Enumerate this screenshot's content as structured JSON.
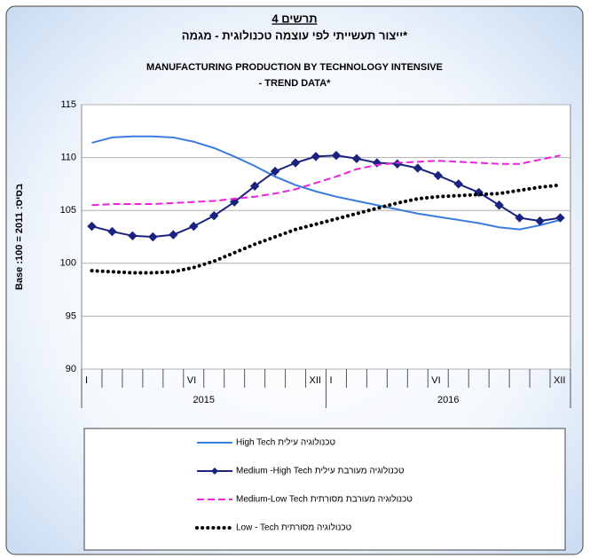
{
  "chart_data": {
    "type": "line",
    "title": "תרשים 4",
    "subtitle": "ייצור תעשייתי לפי עוצמה טכנולוגית - מגמה*",
    "title_en": [
      "MANUFACTURING PRODUCTION BY TECHNOLOGY INTENSIVE",
      "- TREND DATA*"
    ],
    "y_label": "Base :100 = 2011 :בסיס",
    "categories": [
      "I",
      null,
      null,
      null,
      null,
      "VI",
      null,
      null,
      null,
      null,
      null,
      "XII",
      "I",
      null,
      null,
      null,
      null,
      "VI",
      null,
      null,
      null,
      null,
      null,
      "XII"
    ],
    "x_groups": [
      "2015",
      "2016"
    ],
    "ylim": [
      90,
      115
    ],
    "yticks": [
      90,
      95,
      100,
      105,
      110,
      115
    ],
    "grid": true,
    "series": [
      {
        "name": "High Tech טכנולוגיה עילית",
        "color": "#3a7be0",
        "dash": "solid",
        "marker": "none",
        "values": [
          111.4,
          111.9,
          112.0,
          112.0,
          111.9,
          111.5,
          110.9,
          110.1,
          109.2,
          108.2,
          107.4,
          106.8,
          106.3,
          105.9,
          105.5,
          105.1,
          104.7,
          104.4,
          104.1,
          103.8,
          103.4,
          103.2,
          103.6,
          104.1
        ]
      },
      {
        "name": "Medium -High Tech טכנולוגיה מעורבת עילית",
        "color": "#1a237e",
        "dash": "solid",
        "marker": "diamond",
        "values": [
          103.5,
          103.0,
          102.6,
          102.5,
          102.7,
          103.5,
          104.5,
          105.8,
          107.3,
          108.7,
          109.5,
          110.1,
          110.2,
          109.9,
          109.5,
          109.4,
          109.0,
          108.3,
          107.5,
          106.7,
          105.5,
          104.3,
          104.0,
          104.3
        ]
      },
      {
        "name": "Medium-Low Tech טכנולוגיה מעורבת מסורתית",
        "color": "#ee22dd",
        "dash": "dashed",
        "marker": "none",
        "values": [
          105.5,
          105.6,
          105.6,
          105.6,
          105.7,
          105.8,
          105.9,
          106.1,
          106.3,
          106.6,
          107.0,
          107.6,
          108.2,
          108.9,
          109.3,
          109.5,
          109.6,
          109.7,
          109.6,
          109.5,
          109.4,
          109.4,
          109.8,
          110.2
        ]
      },
      {
        "name": "Low - Tech טכנולוגיה מסורתית",
        "color": "#000000",
        "dash": "dotted",
        "marker": "none",
        "values": [
          99.3,
          99.2,
          99.1,
          99.1,
          99.2,
          99.6,
          100.2,
          101.0,
          101.8,
          102.5,
          103.2,
          103.7,
          104.2,
          104.7,
          105.2,
          105.7,
          106.1,
          106.3,
          106.4,
          106.5,
          106.6,
          106.9,
          107.2,
          107.4
        ]
      }
    ]
  }
}
